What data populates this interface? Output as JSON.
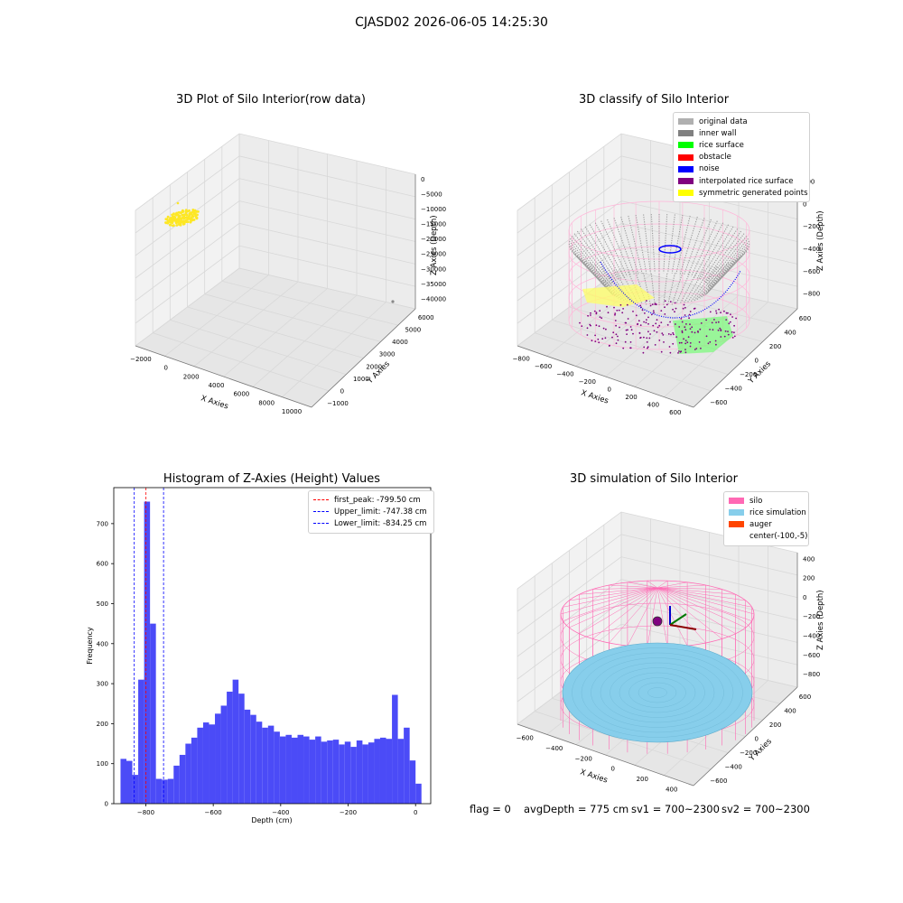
{
  "figure": {
    "suptitle": "CJASD02 2026-06-05 14:25:30",
    "footer": {
      "flag": "flag = 0",
      "avg_depth": "avgDepth = 775 cm",
      "sv1": "sv1 = 700~2300",
      "sv2": "sv2 = 700~2300"
    }
  },
  "colors": {
    "raw_points": "#fde725",
    "silo": "#ff69b4",
    "rice_simulation": "#87ceeb",
    "auger": "#ff4500",
    "histogram_bars": "#4b4bf7",
    "first_peak_line": "#ff0000",
    "limit_lines": "#0000ff"
  },
  "chart_data": [
    {
      "type": "scatter",
      "projection": "3d",
      "title": "3D Plot of Silo Interior(row data)",
      "xlabel": "X Axies",
      "ylabel": "Y Axies",
      "zlabel": "Z Axies (Depth)",
      "x_ticks": [
        "−2000",
        "0",
        "2000",
        "4000",
        "6000",
        "8000",
        "10000"
      ],
      "y_ticks": [
        "−1000",
        "0",
        "1000",
        "2000",
        "3000",
        "4000",
        "5000",
        "6000"
      ],
      "z_ticks": [
        "0",
        "−5000",
        "−10000",
        "−15000",
        "−20000",
        "−25000",
        "−30000",
        "−35000",
        "−40000"
      ],
      "xlim": [
        -2400,
        11200
      ],
      "ylim": [
        -1000,
        6500
      ],
      "zlim": [
        -41000,
        1000
      ],
      "grid": true,
      "clusters": [
        {
          "name": "",
          "color": "#fde725",
          "x_range": [
            -1000,
            1000
          ],
          "y_range": [
            5500,
            6200
          ],
          "z_range": [
            -1200,
            0
          ]
        },
        {
          "name": "",
          "color": "#888888",
          "x": 10300,
          "y": -500,
          "z": -39000
        }
      ]
    },
    {
      "type": "scatter",
      "projection": "3d",
      "title": "3D classify of Silo Interior",
      "xlabel": "X Axies",
      "ylabel": "Y Axies",
      "zlabel": "Z Axies (Depth)",
      "x_ticks": [
        "−800",
        "−600",
        "−400",
        "−200",
        "0",
        "200",
        "400",
        "600"
      ],
      "y_ticks": [
        "−600",
        "−400",
        "−200",
        "0",
        "200",
        "400",
        "600"
      ],
      "z_ticks": [
        "200",
        "0",
        "−200",
        "−400",
        "−600",
        "−800"
      ],
      "grid": true,
      "legend": {
        "position": "upper right",
        "entries": [
          {
            "label": "original data",
            "color": "#b0b0b0"
          },
          {
            "label": "inner wall",
            "color": "#808080"
          },
          {
            "label": "rice surface",
            "color": "#00ff00"
          },
          {
            "label": "obstacle",
            "color": "#ff0000"
          },
          {
            "label": "noise",
            "color": "#0000ff"
          },
          {
            "label": "interpolated rice surface",
            "color": "#800080"
          },
          {
            "label": "symmetric generated points",
            "color": "#ffff00"
          }
        ]
      }
    },
    {
      "type": "bar",
      "title": "Histogram of Z-Axies (Height) Values",
      "xlabel": "Depth (cm)",
      "ylabel": "Frequency",
      "xlim": [
        -895,
        45
      ],
      "ylim": [
        0,
        790
      ],
      "x_ticks": [
        -800,
        -600,
        -400,
        -200,
        0
      ],
      "y_ticks": [
        0,
        100,
        200,
        300,
        400,
        500,
        600,
        700
      ],
      "bin_start": -875,
      "bin_width": 17.5,
      "values": [
        112,
        107,
        72,
        310,
        755,
        450,
        62,
        60,
        62,
        95,
        122,
        150,
        165,
        190,
        203,
        198,
        225,
        245,
        280,
        310,
        275,
        235,
        222,
        205,
        190,
        195,
        180,
        168,
        172,
        165,
        172,
        168,
        160,
        168,
        155,
        158,
        160,
        148,
        155,
        142,
        158,
        148,
        153,
        162,
        165,
        162,
        272,
        162,
        190,
        108,
        50
      ],
      "vlines": [
        {
          "x": -799.5,
          "color": "#ff0000",
          "label": "first_peak: -799.50 cm"
        },
        {
          "x": -747.38,
          "color": "#0000ff",
          "label": "Upper_limit: -747.38 cm"
        },
        {
          "x": -834.25,
          "color": "#0000ff",
          "label": "Lower_limit: -834.25 cm"
        }
      ],
      "legend": "upper right"
    },
    {
      "type": "scatter",
      "projection": "3d",
      "title": "3D simulation of Silo Interior",
      "xlabel": "X Axies",
      "ylabel": "Y Axies",
      "zlabel": "Z Axies (Depth)",
      "x_ticks": [
        "−600",
        "−400",
        "−200",
        "0",
        "200",
        "400"
      ],
      "y_ticks": [
        "−600",
        "−400",
        "−200",
        "0",
        "200",
        "400",
        "600"
      ],
      "z_ticks": [
        "400",
        "200",
        "0",
        "−200",
        "−400",
        "−600",
        "−800"
      ],
      "grid": true,
      "legend": {
        "position": "upper right",
        "entries": [
          {
            "label": "silo",
            "color": "#ff69b4"
          },
          {
            "label": "rice simulation",
            "color": "#87ceeb"
          },
          {
            "label": "auger",
            "color": "#ff4500"
          },
          {
            "label": "center(-100,-5)",
            "color": ""
          }
        ]
      }
    }
  ]
}
